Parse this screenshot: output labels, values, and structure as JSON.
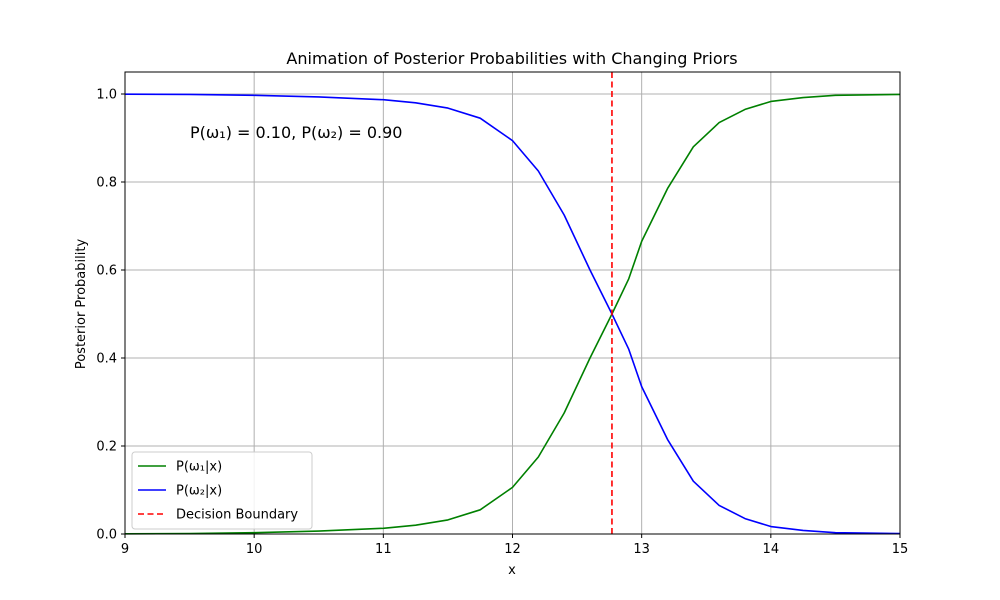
{
  "chart_data": {
    "type": "line",
    "title": "Animation of Posterior Probabilities with Changing Priors",
    "xlabel": "x",
    "ylabel": "Posterior Probability",
    "xlim": [
      9,
      15
    ],
    "ylim": [
      0,
      1.05
    ],
    "x_ticks": [
      9,
      10,
      11,
      12,
      13,
      14,
      15
    ],
    "y_ticks": [
      0.0,
      0.2,
      0.4,
      0.6,
      0.8,
      1.0
    ],
    "x_tick_labels": [
      "9",
      "10",
      "11",
      "12",
      "13",
      "14",
      "15"
    ],
    "y_tick_labels": [
      "0.0",
      "0.2",
      "0.4",
      "0.6",
      "0.8",
      "1.0"
    ],
    "grid": true,
    "annotation": "P(ω₁) = 0.10, P(ω₂) = 0.90",
    "x": [
      9.0,
      9.5,
      10.0,
      10.5,
      11.0,
      11.25,
      11.5,
      11.75,
      12.0,
      12.2,
      12.4,
      12.6,
      12.77,
      12.9,
      13.0,
      13.2,
      13.4,
      13.6,
      13.8,
      14.0,
      14.25,
      14.5,
      15.0
    ],
    "series": [
      {
        "name": "P(ω₁|x)",
        "color": "#008000",
        "values": [
          0.0004,
          0.0011,
          0.0029,
          0.0067,
          0.013,
          0.02,
          0.032,
          0.055,
          0.106,
          0.175,
          0.275,
          0.4,
          0.5,
          0.58,
          0.665,
          0.785,
          0.88,
          0.935,
          0.965,
          0.983,
          0.992,
          0.997,
          0.999
        ]
      },
      {
        "name": "P(ω₂|x)",
        "color": "#0000ff",
        "values": [
          0.9996,
          0.9989,
          0.9971,
          0.9933,
          0.987,
          0.98,
          0.968,
          0.945,
          0.894,
          0.825,
          0.725,
          0.6,
          0.5,
          0.42,
          0.335,
          0.215,
          0.12,
          0.065,
          0.035,
          0.017,
          0.008,
          0.003,
          0.001
        ]
      }
    ],
    "decision_boundary": {
      "name": "Decision Boundary",
      "x": 12.77,
      "color": "#ff0000",
      "style": "dashed"
    },
    "legend_position": "lower-left"
  }
}
